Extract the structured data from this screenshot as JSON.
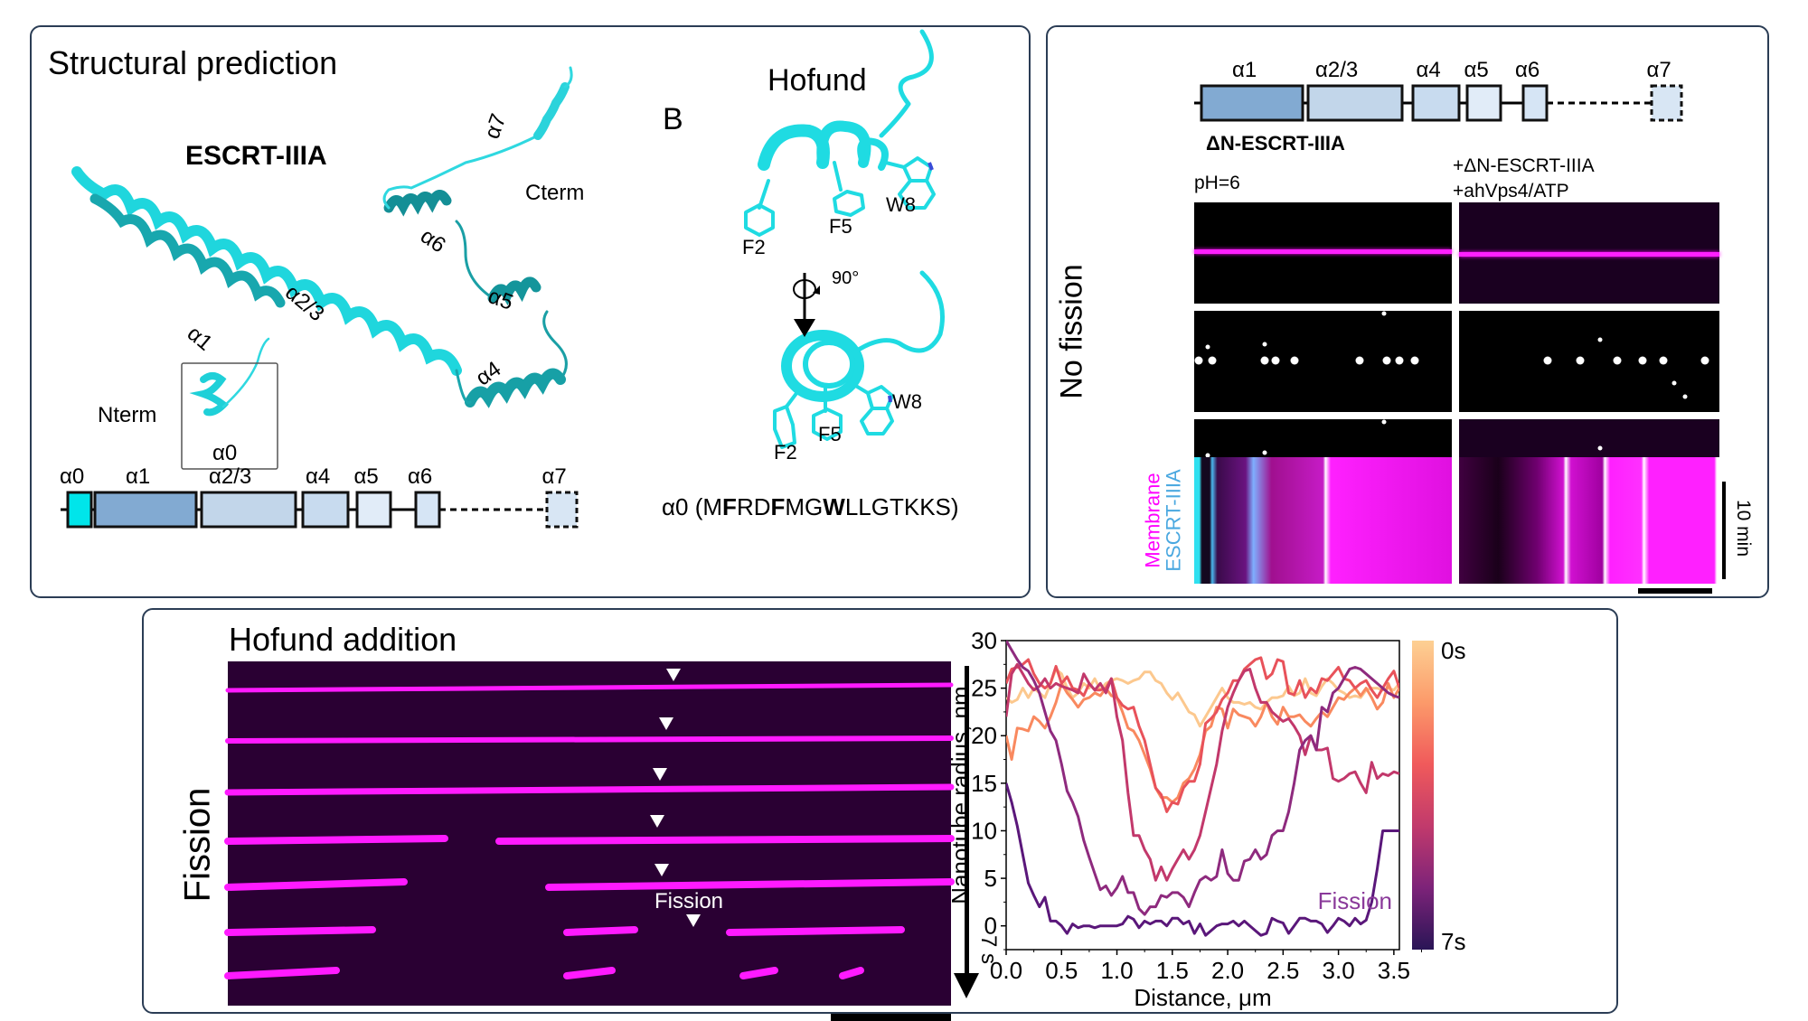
{
  "panel_a": {
    "title": "Structural prediction",
    "protein_label": "ESCRT-IIIA",
    "helix_labels": [
      "α1",
      "α2/3",
      "α4",
      "α5",
      "α6",
      "α7"
    ],
    "nterm_label": "Nterm",
    "cterm_label": "Cterm",
    "inset_label": "α0",
    "domain_map": {
      "labels": [
        "α0",
        "α1",
        "α2/3",
        "α4",
        "α5",
        "α6",
        "α7"
      ],
      "colors": [
        "#00e5ea",
        "#82aad2",
        "#c2d6ea",
        "#c8dbef",
        "#e1ecf8",
        "#d6e5f5",
        "#d8e6f4"
      ]
    },
    "section_b_label": "B",
    "hofund_title": "Hofund",
    "residues_top": [
      "F2",
      "F5",
      "W8"
    ],
    "residues_bottom": [
      "F2",
      "F5",
      "W8"
    ],
    "rotation_label": "90°",
    "sequence_prefix": "α0 (",
    "sequence_parts": [
      {
        "t": "M",
        "b": false
      },
      {
        "t": "F",
        "b": true
      },
      {
        "t": "RD",
        "b": false
      },
      {
        "t": "F",
        "b": true
      },
      {
        "t": "MG",
        "b": false
      },
      {
        "t": "W",
        "b": true
      },
      {
        "t": "LLGTKKS",
        "b": false
      }
    ],
    "sequence_suffix": ")"
  },
  "panel_c": {
    "domain_map": {
      "labels": [
        "α1",
        "α2/3",
        "α4",
        "α5",
        "α6",
        "α7"
      ]
    },
    "construct_label": "ΔN-ESCRT-IIIA",
    "condition_left": "pH=6",
    "condition_right_line1": "+ΔN-ESCRT-IIIA",
    "condition_right_line2": "+ahVps4/ATP",
    "row_label": "No fission",
    "channel_membrane": "Membrane",
    "channel_escrt": "ESCRT-IIIA",
    "scale_time": "10 min",
    "colors": {
      "membrane": "#ff00ff",
      "escrt": "#4aa8e0"
    }
  },
  "panel_d": {
    "title": "Hofund addition",
    "row_label": "Fission",
    "fission_annotation": "Fission",
    "time_arrow_label": "7 s"
  },
  "chart_data": {
    "type": "line",
    "title": "",
    "xlabel": "Distance, μm",
    "ylabel": "Nanotube radius, nm",
    "xlim": [
      0,
      3.55
    ],
    "ylim": [
      -2.5,
      30
    ],
    "xticks": [
      0.0,
      0.5,
      1.0,
      1.5,
      2.0,
      2.5,
      3.0,
      3.5
    ],
    "xtick_labels": [
      "0.0",
      "0.5",
      "1.0",
      "1.5",
      "2.0",
      "2.5",
      "3.0",
      "3.5"
    ],
    "yticks": [
      0,
      5,
      10,
      15,
      20,
      25,
      30
    ],
    "ytick_labels": [
      "0",
      "5",
      "10",
      "15",
      "20",
      "25",
      "30"
    ],
    "annotation": "Fission",
    "colorbar": {
      "top_label": "0s",
      "bottom_label": "7s",
      "colormap": "magma"
    },
    "grid": false,
    "x": [
      0.0,
      0.05,
      0.1,
      0.15,
      0.2,
      0.25,
      0.3,
      0.35,
      0.4,
      0.45,
      0.5,
      0.55,
      0.6,
      0.65,
      0.7,
      0.75,
      0.8,
      0.85,
      0.9,
      0.95,
      1.0,
      1.05,
      1.1,
      1.15,
      1.2,
      1.25,
      1.3,
      1.35,
      1.4,
      1.45,
      1.5,
      1.55,
      1.6,
      1.65,
      1.7,
      1.75,
      1.8,
      1.85,
      1.9,
      1.95,
      2.0,
      2.05,
      2.1,
      2.15,
      2.2,
      2.25,
      2.3,
      2.35,
      2.4,
      2.45,
      2.5,
      2.55,
      2.6,
      2.65,
      2.7,
      2.75,
      2.8,
      2.85,
      2.9,
      2.95,
      3.0,
      3.05,
      3.1,
      3.15,
      3.2,
      3.25,
      3.3,
      3.35,
      3.4,
      3.45,
      3.5,
      3.55
    ],
    "series": [
      {
        "name": "0s",
        "color": "#fcc88e",
        "values": [
          24,
          23.5,
          23.8,
          25,
          24,
          25,
          24.5,
          24,
          25.5,
          27,
          26.5,
          25,
          24,
          24.5,
          25.5,
          25,
          26,
          24.8,
          25.5,
          25.8,
          26,
          25.8,
          25.5,
          25.8,
          26,
          26.7,
          26.7,
          25.8,
          25.5,
          24.5,
          23.8,
          24.5,
          23.5,
          22.5,
          22.2,
          21,
          22,
          23,
          24,
          25,
          24,
          23.5,
          23.5,
          23.3,
          23.5,
          23,
          22.8,
          23.5,
          24,
          24,
          24.2,
          25.2,
          24.2,
          24.5,
          26,
          24.5,
          24.2,
          25.2,
          26,
          25.5,
          24.8,
          24.5,
          24,
          24.2,
          24,
          24.8,
          25,
          25,
          24.8,
          25,
          24.8,
          25.5
        ]
      },
      {
        "name": "t1",
        "color": "#f9895f",
        "values": [
          20,
          17.5,
          20.8,
          20.7,
          20.5,
          22,
          21.5,
          20.8,
          22,
          23.5,
          25.5,
          24.5,
          23.8,
          23,
          23.8,
          24,
          24.5,
          24.2,
          25,
          24.2,
          24,
          22.5,
          20.8,
          20.5,
          19.5,
          18,
          16.5,
          14.5,
          13.5,
          13.5,
          13,
          13.5,
          15,
          15.5,
          16.5,
          18,
          20.5,
          21,
          23,
          22.8,
          20.8,
          22.8,
          22.2,
          22,
          21.8,
          21,
          22,
          23.5,
          22,
          21.2,
          23,
          22,
          22,
          22.2,
          21.5,
          21,
          21.8,
          22.5,
          22,
          23,
          24,
          23.8,
          24.5,
          25,
          24.2,
          25,
          24,
          22.8,
          23.5,
          25.5,
          24,
          25
        ]
      },
      {
        "name": "t2",
        "color": "#e8525a",
        "values": [
          25.5,
          27,
          27.2,
          27.5,
          28,
          26.5,
          25.5,
          25,
          25.5,
          27.3,
          25.5,
          26.2,
          25,
          24.8,
          24.2,
          25.5,
          24.8,
          24.8,
          25,
          26,
          24,
          23.2,
          22.8,
          23,
          21,
          19.5,
          17,
          14.5,
          13.8,
          12,
          13,
          12.8,
          14.5,
          15.2,
          15.2,
          17,
          21.3,
          21.8,
          22.5,
          23.8,
          24.5,
          25.8,
          25.8,
          27,
          27.5,
          28,
          28.2,
          26,
          26.5,
          28,
          27.8,
          24.5,
          24.3,
          25.8,
          24,
          25,
          24.5,
          26,
          25.8,
          26.5,
          27.2,
          26,
          25.8,
          25,
          25.5,
          25.8,
          24.8,
          24,
          25,
          26,
          26.8,
          25
        ]
      },
      {
        "name": "t3",
        "color": "#c2386b",
        "values": [
          22,
          26.5,
          27.5,
          26.5,
          25.5,
          24.8,
          25.2,
          26,
          25,
          25.5,
          25.2,
          25,
          24.8,
          24.5,
          26.5,
          25.5,
          24.8,
          25.5,
          24.5,
          26,
          22,
          19.5,
          14,
          9.5,
          9.5,
          8,
          7,
          4.8,
          6.2,
          4.8,
          6,
          7,
          8,
          7,
          8,
          9.5,
          12,
          14.5,
          17,
          20.5,
          23,
          24.5,
          25.8,
          26.8,
          27,
          25,
          23.5,
          23.5,
          22.5,
          22,
          21.5,
          21.8,
          21,
          20,
          18,
          20,
          18.5,
          18.5,
          18.7,
          15.5,
          15.2,
          15.5,
          16,
          16.2,
          15,
          14,
          17.2,
          15.5,
          16,
          15.8,
          16.2,
          16
        ]
      },
      {
        "name": "t4",
        "color": "#8e2a7e",
        "values": [
          30,
          29,
          28,
          27.2,
          26.8,
          25.8,
          24.5,
          22.5,
          20.5,
          19.5,
          17,
          14.2,
          13,
          11.5,
          9,
          7.2,
          5.5,
          3.8,
          4.2,
          3.2,
          4,
          5.2,
          3.5,
          3.5,
          1.8,
          1.2,
          2,
          2,
          3.2,
          3,
          3.5,
          3.5,
          3,
          2,
          3.5,
          4.8,
          5.2,
          4.8,
          5.2,
          8,
          5.5,
          4.8,
          4.8,
          6.8,
          7,
          8,
          7,
          7.5,
          9.5,
          10,
          10,
          12,
          15,
          18.5,
          19.5,
          20,
          18.5,
          23,
          22.5,
          24.5,
          25,
          26,
          27,
          27.2,
          27,
          26.5,
          26,
          25.5,
          25,
          24.5,
          24.2,
          24
        ]
      },
      {
        "name": "7s",
        "color": "#5a177a",
        "values": [
          15,
          13,
          10.5,
          7.5,
          4.5,
          3.2,
          2,
          3,
          0.5,
          0.5,
          0,
          -0.8,
          0.2,
          -0.2,
          0,
          0,
          -0.2,
          0,
          0,
          0,
          0,
          0.2,
          1,
          0.7,
          -0.2,
          0.5,
          0.2,
          0.5,
          0.5,
          0,
          0.8,
          0.8,
          0.2,
          0.5,
          -0.8,
          0.2,
          -1,
          -0.5,
          0,
          0.2,
          0.2,
          0.5,
          0,
          0.5,
          0,
          -0.5,
          -1,
          -0.8,
          0.8,
          0.5,
          0.3,
          -0.8,
          0,
          0.8,
          0.8,
          0.5,
          0.5,
          0.2,
          -0.7,
          0,
          0.8,
          0.5,
          0,
          0.8,
          0.2,
          0.6,
          2.5,
          6,
          10,
          10,
          10,
          10
        ]
      }
    ]
  }
}
